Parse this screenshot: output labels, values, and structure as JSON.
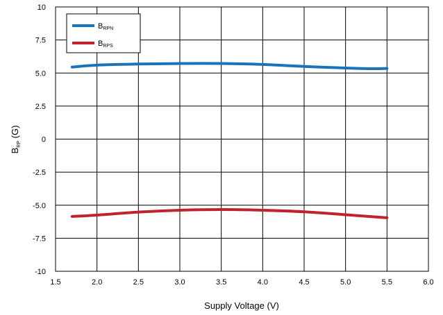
{
  "chart_data": {
    "type": "line",
    "xlabel": "Supply Voltage (V)",
    "ylabel": {
      "main": "B",
      "sub": "RP",
      "suffix": " (G)"
    },
    "xlim": [
      1.5,
      6.0
    ],
    "ylim": [
      -10,
      10
    ],
    "x_ticks": [
      "1.5",
      "2.0",
      "2.5",
      "3.0",
      "3.5",
      "4.0",
      "4.5",
      "5.0",
      "5.5",
      "6.0"
    ],
    "y_ticks": [
      "10",
      "7.5",
      "5.0",
      "2.5",
      "0",
      "-2.5",
      "-5.0",
      "-7.5",
      "-10"
    ],
    "grid": true,
    "legend_position": "top-left",
    "series": [
      {
        "name": {
          "main": "B",
          "sub": "RPN"
        },
        "color": "#1a73b8",
        "x": [
          1.7,
          2.0,
          2.5,
          3.0,
          3.5,
          4.0,
          4.5,
          5.0,
          5.3,
          5.5
        ],
        "y": [
          5.45,
          5.6,
          5.68,
          5.72,
          5.72,
          5.65,
          5.5,
          5.38,
          5.33,
          5.35
        ]
      },
      {
        "name": {
          "main": "B",
          "sub": "RPS"
        },
        "color": "#c0232c",
        "x": [
          1.7,
          2.0,
          2.5,
          3.0,
          3.5,
          4.0,
          4.5,
          5.0,
          5.5
        ],
        "y": [
          -5.85,
          -5.75,
          -5.52,
          -5.38,
          -5.33,
          -5.38,
          -5.5,
          -5.72,
          -5.95
        ]
      }
    ]
  }
}
